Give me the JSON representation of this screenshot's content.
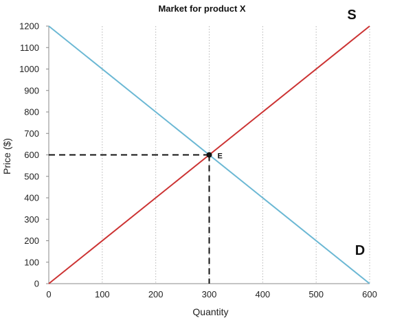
{
  "chart_data": {
    "type": "line",
    "title": "Market for product X",
    "xlabel": "Quantity",
    "ylabel": "Price ($)",
    "xlim": [
      0,
      600
    ],
    "ylim": [
      0,
      1200
    ],
    "x_ticks": [
      0,
      100,
      200,
      300,
      400,
      500,
      600
    ],
    "y_ticks": [
      0,
      100,
      200,
      300,
      400,
      500,
      600,
      700,
      800,
      900,
      1000,
      1100,
      1200
    ],
    "grid": {
      "vertical": true,
      "horizontal": false,
      "style": "dotted"
    },
    "series": [
      {
        "name": "S",
        "color": "#cc3333",
        "points": [
          [
            0,
            0
          ],
          [
            600,
            1200
          ]
        ]
      },
      {
        "name": "D",
        "color": "#6bb8d4",
        "points": [
          [
            0,
            1200
          ],
          [
            600,
            0
          ]
        ]
      }
    ],
    "equilibrium": {
      "label": "E",
      "x": 300,
      "y": 600
    },
    "guide_color": "#111111"
  }
}
